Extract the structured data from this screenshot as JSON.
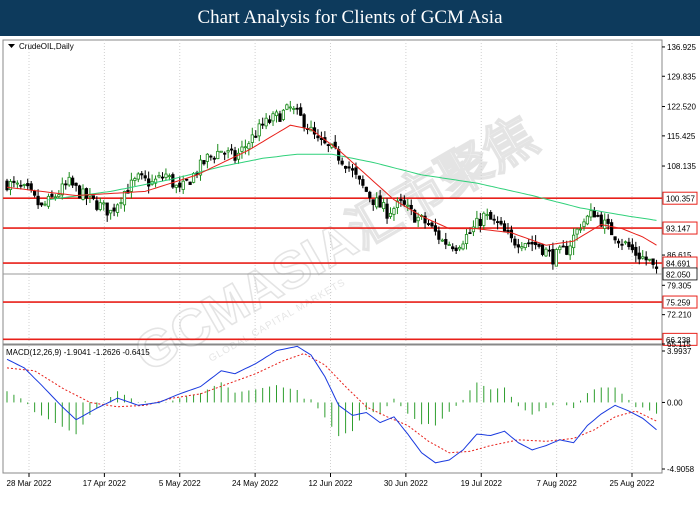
{
  "header": {
    "title": "Chart Analysis for Clients of GCM Asia"
  },
  "watermark": {
    "text": "GCMASIA汇市聚焦",
    "subtext": "GLOBAL CAPITAL MARKETS"
  },
  "colors": {
    "bull": "#1a8a1a",
    "bear": "#000000",
    "ma_fast": "#e8201a",
    "ma_slow": "#2fd17a",
    "level_line": "#e8201a",
    "last_price_line": "#999999",
    "macd_line": "#1a3adf",
    "signal_line": "#e8201a",
    "histogram": "#2e9e2e",
    "banner": "#0d3a5c"
  },
  "chart_data": [
    {
      "type": "candlestick",
      "symbol_label": "CrudeOIL,Daily",
      "ylim": [
        65.115,
        138.6
      ],
      "y_ticks": [
        "136.925",
        "129.835",
        "122.520",
        "115.425",
        "108.135",
        "100.357",
        "93.147",
        "86.615",
        "84.691",
        "82.050",
        "79.305",
        "75.259",
        "72.210",
        "66.238",
        "65.115"
      ],
      "x_ticks": [
        "28 Mar 2022",
        "17 Apr 2022",
        "5 May 2022",
        "24 May 2022",
        "12 Jun 2022",
        "30 Jun 2022",
        "19 Jul 2022",
        "7 Aug 2022",
        "25 Aug 2022"
      ],
      "levels": [
        {
          "label": "100.357",
          "value": 100.357
        },
        {
          "label": "93.147",
          "value": 93.147
        },
        {
          "label": "84.691",
          "value": 84.691
        },
        {
          "label": "75.259",
          "value": 75.259
        },
        {
          "label": "66.238",
          "value": 66.238
        }
      ],
      "last_price": {
        "label": "82.050",
        "value": 82.05
      },
      "close_path": [
        {
          "x": 0,
          "y": 104
        },
        {
          "x": 6,
          "y": 102
        },
        {
          "x": 10,
          "y": 98
        },
        {
          "x": 14,
          "y": 101
        },
        {
          "x": 18,
          "y": 104
        },
        {
          "x": 22,
          "y": 101
        },
        {
          "x": 26,
          "y": 99
        },
        {
          "x": 30,
          "y": 97
        },
        {
          "x": 34,
          "y": 102
        },
        {
          "x": 38,
          "y": 105
        },
        {
          "x": 42,
          "y": 104
        },
        {
          "x": 46,
          "y": 106
        },
        {
          "x": 50,
          "y": 102
        },
        {
          "x": 54,
          "y": 106
        },
        {
          "x": 58,
          "y": 110
        },
        {
          "x": 62,
          "y": 112
        },
        {
          "x": 66,
          "y": 110
        },
        {
          "x": 70,
          "y": 114
        },
        {
          "x": 74,
          "y": 118
        },
        {
          "x": 78,
          "y": 120
        },
        {
          "x": 82,
          "y": 122
        },
        {
          "x": 86,
          "y": 119
        },
        {
          "x": 90,
          "y": 114
        },
        {
          "x": 94,
          "y": 112
        },
        {
          "x": 98,
          "y": 109
        },
        {
          "x": 102,
          "y": 104
        },
        {
          "x": 106,
          "y": 100
        },
        {
          "x": 110,
          "y": 97
        },
        {
          "x": 114,
          "y": 99
        },
        {
          "x": 118,
          "y": 96
        },
        {
          "x": 122,
          "y": 94
        },
        {
          "x": 126,
          "y": 90
        },
        {
          "x": 130,
          "y": 89
        },
        {
          "x": 134,
          "y": 92
        },
        {
          "x": 138,
          "y": 96
        },
        {
          "x": 142,
          "y": 94
        },
        {
          "x": 146,
          "y": 90
        },
        {
          "x": 150,
          "y": 90
        },
        {
          "x": 154,
          "y": 89
        },
        {
          "x": 158,
          "y": 86
        },
        {
          "x": 162,
          "y": 88
        },
        {
          "x": 166,
          "y": 94
        },
        {
          "x": 170,
          "y": 97
        },
        {
          "x": 174,
          "y": 93
        },
        {
          "x": 178,
          "y": 90
        },
        {
          "x": 182,
          "y": 87
        },
        {
          "x": 186,
          "y": 85
        },
        {
          "x": 188,
          "y": 82
        }
      ],
      "ma_fast": [
        {
          "x": 0,
          "y": 103
        },
        {
          "x": 20,
          "y": 101
        },
        {
          "x": 40,
          "y": 102
        },
        {
          "x": 55,
          "y": 106
        },
        {
          "x": 70,
          "y": 112
        },
        {
          "x": 82,
          "y": 118
        },
        {
          "x": 88,
          "y": 117
        },
        {
          "x": 96,
          "y": 112
        },
        {
          "x": 104,
          "y": 106
        },
        {
          "x": 112,
          "y": 100
        },
        {
          "x": 120,
          "y": 96
        },
        {
          "x": 128,
          "y": 93
        },
        {
          "x": 136,
          "y": 93
        },
        {
          "x": 146,
          "y": 92
        },
        {
          "x": 156,
          "y": 89
        },
        {
          "x": 164,
          "y": 90
        },
        {
          "x": 172,
          "y": 94
        },
        {
          "x": 178,
          "y": 93
        },
        {
          "x": 184,
          "y": 91
        },
        {
          "x": 188,
          "y": 89
        }
      ],
      "ma_slow": [
        {
          "x": 12,
          "y": 100
        },
        {
          "x": 30,
          "y": 102
        },
        {
          "x": 48,
          "y": 105
        },
        {
          "x": 62,
          "y": 108
        },
        {
          "x": 74,
          "y": 110
        },
        {
          "x": 84,
          "y": 111
        },
        {
          "x": 94,
          "y": 111
        },
        {
          "x": 106,
          "y": 109
        },
        {
          "x": 120,
          "y": 106
        },
        {
          "x": 136,
          "y": 104
        },
        {
          "x": 152,
          "y": 101
        },
        {
          "x": 166,
          "y": 98
        },
        {
          "x": 180,
          "y": 96
        },
        {
          "x": 188,
          "y": 95
        }
      ]
    },
    {
      "type": "line",
      "indicator_label": "MACD(12,26,9) -1.9041 -1.2626 -0.6415",
      "ylim": [
        -4.9058,
        3.9937
      ],
      "y_ticks": [
        "3.9937",
        "0.00",
        "-4.9058"
      ],
      "series": [
        {
          "values": [
            {
              "x": 0,
              "y": 3.0
            },
            {
              "x": 5,
              "y": 2.4
            },
            {
              "x": 10,
              "y": 1.2
            },
            {
              "x": 16,
              "y": -0.3
            },
            {
              "x": 20,
              "y": -1.2
            },
            {
              "x": 26,
              "y": -0.4
            },
            {
              "x": 32,
              "y": 0.3
            },
            {
              "x": 38,
              "y": -0.2
            },
            {
              "x": 44,
              "y": 0.0
            },
            {
              "x": 50,
              "y": 0.6
            },
            {
              "x": 56,
              "y": 1.1
            },
            {
              "x": 62,
              "y": 2.2
            },
            {
              "x": 66,
              "y": 2.0
            },
            {
              "x": 72,
              "y": 2.7
            },
            {
              "x": 78,
              "y": 3.6
            },
            {
              "x": 84,
              "y": 3.9
            },
            {
              "x": 88,
              "y": 3.3
            },
            {
              "x": 92,
              "y": 1.8
            },
            {
              "x": 96,
              "y": -0.2
            },
            {
              "x": 100,
              "y": -0.9
            },
            {
              "x": 104,
              "y": -0.7
            },
            {
              "x": 108,
              "y": -1.4
            },
            {
              "x": 112,
              "y": -1.0
            },
            {
              "x": 116,
              "y": -2.2
            },
            {
              "x": 120,
              "y": -3.5
            },
            {
              "x": 124,
              "y": -4.2
            },
            {
              "x": 128,
              "y": -4.0
            },
            {
              "x": 132,
              "y": -3.3
            },
            {
              "x": 136,
              "y": -2.2
            },
            {
              "x": 140,
              "y": -2.3
            },
            {
              "x": 144,
              "y": -2.0
            },
            {
              "x": 148,
              "y": -2.8
            },
            {
              "x": 152,
              "y": -3.3
            },
            {
              "x": 156,
              "y": -3.0
            },
            {
              "x": 160,
              "y": -2.6
            },
            {
              "x": 164,
              "y": -2.8
            },
            {
              "x": 168,
              "y": -1.6
            },
            {
              "x": 172,
              "y": -0.8
            },
            {
              "x": 176,
              "y": -0.2
            },
            {
              "x": 180,
              "y": -0.6
            },
            {
              "x": 184,
              "y": -1.1
            },
            {
              "x": 188,
              "y": -1.9
            }
          ]
        },
        {
          "values": [
            {
              "x": 0,
              "y": 2.4
            },
            {
              "x": 8,
              "y": 2.2
            },
            {
              "x": 16,
              "y": 1.0
            },
            {
              "x": 24,
              "y": 0.0
            },
            {
              "x": 32,
              "y": -0.3
            },
            {
              "x": 40,
              "y": -0.2
            },
            {
              "x": 48,
              "y": 0.3
            },
            {
              "x": 56,
              "y": 0.6
            },
            {
              "x": 64,
              "y": 1.3
            },
            {
              "x": 72,
              "y": 2.0
            },
            {
              "x": 80,
              "y": 2.9
            },
            {
              "x": 86,
              "y": 3.4
            },
            {
              "x": 92,
              "y": 2.6
            },
            {
              "x": 98,
              "y": 1.1
            },
            {
              "x": 104,
              "y": -0.3
            },
            {
              "x": 110,
              "y": -1.0
            },
            {
              "x": 116,
              "y": -1.6
            },
            {
              "x": 122,
              "y": -2.7
            },
            {
              "x": 128,
              "y": -3.5
            },
            {
              "x": 134,
              "y": -3.4
            },
            {
              "x": 140,
              "y": -3.0
            },
            {
              "x": 148,
              "y": -2.6
            },
            {
              "x": 156,
              "y": -2.7
            },
            {
              "x": 164,
              "y": -2.5
            },
            {
              "x": 170,
              "y": -1.9
            },
            {
              "x": 176,
              "y": -1.0
            },
            {
              "x": 182,
              "y": -0.6
            },
            {
              "x": 188,
              "y": -1.3
            }
          ]
        }
      ]
    }
  ]
}
